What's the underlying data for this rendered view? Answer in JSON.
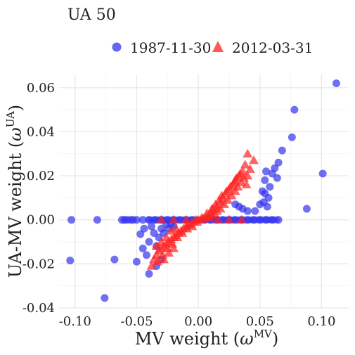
{
  "chart_data": {
    "type": "scatter",
    "title": "UA 50",
    "xlabel": {
      "main": "MV weight (",
      "omega": "ω",
      "sup": "MV",
      "close": ")"
    },
    "ylabel": {
      "main": "UA-MV weight (",
      "omega": "ω",
      "sup": "UA",
      "close": ")"
    },
    "xlim": [
      -0.113,
      0.122
    ],
    "ylim": [
      -0.04,
      0.066
    ],
    "x_ticks": [
      {
        "value": -0.1,
        "label": "-0.10"
      },
      {
        "value": -0.05,
        "label": "-0.05"
      },
      {
        "value": 0.0,
        "label": "0.00"
      },
      {
        "value": 0.05,
        "label": "0.05"
      },
      {
        "value": 0.1,
        "label": "0.10"
      }
    ],
    "y_ticks": [
      {
        "value": -0.04,
        "label": "-0.04"
      },
      {
        "value": -0.02,
        "label": "-0.02"
      },
      {
        "value": 0.0,
        "label": "0.00"
      },
      {
        "value": 0.02,
        "label": "0.02"
      },
      {
        "value": 0.04,
        "label": "0.04"
      },
      {
        "value": 0.06,
        "label": "0.06"
      }
    ],
    "grid": true,
    "legend_position": "top",
    "series": [
      {
        "name": "1987-11-30",
        "marker": "circle",
        "color": "#3333ee",
        "points": [
          [
            0.112,
            0.062
          ],
          [
            0.078,
            0.05
          ],
          [
            0.076,
            0.0375
          ],
          [
            0.068,
            0.0315
          ],
          [
            0.101,
            0.021
          ],
          [
            0.088,
            0.005
          ],
          [
            0.065,
            0.026
          ],
          [
            0.064,
            0.019
          ],
          [
            0.062,
            0.0235
          ],
          [
            0.06,
            0.021
          ],
          [
            0.055,
            0.022
          ],
          [
            0.058,
            0.015
          ],
          [
            0.054,
            0.018
          ],
          [
            0.052,
            0.013
          ],
          [
            0.057,
            0.01
          ],
          [
            0.053,
            0.008
          ],
          [
            0.056,
            0.006
          ],
          [
            0.05,
            0.007
          ],
          [
            0.054,
            0.012
          ],
          [
            0.046,
            0.004
          ],
          [
            0.04,
            0.004
          ],
          [
            0.033,
            0.006
          ],
          [
            0.03,
            0.007
          ],
          [
            0.036,
            0.005
          ],
          [
            -0.103,
            0.0
          ],
          [
            -0.082,
            0.0
          ],
          [
            -0.062,
            0.0
          ],
          [
            -0.06,
            0.0
          ],
          [
            -0.058,
            0.0
          ],
          [
            -0.055,
            0.0
          ],
          [
            -0.053,
            0.0
          ],
          [
            -0.05,
            0.0
          ],
          [
            -0.045,
            0.0
          ],
          [
            -0.04,
            0.0
          ],
          [
            -0.035,
            0.0
          ],
          [
            -0.03,
            0.0
          ],
          [
            -0.025,
            0.0
          ],
          [
            -0.02,
            0.0
          ],
          [
            -0.015,
            0.0
          ],
          [
            -0.01,
            0.0
          ],
          [
            -0.005,
            0.0
          ],
          [
            0.005,
            0.0
          ],
          [
            0.01,
            0.0
          ],
          [
            0.015,
            0.0
          ],
          [
            0.02,
            0.0
          ],
          [
            0.025,
            0.0
          ],
          [
            0.03,
            0.0
          ],
          [
            0.035,
            0.0
          ],
          [
            0.04,
            0.0
          ],
          [
            0.045,
            0.0
          ],
          [
            0.05,
            0.0
          ],
          [
            0.055,
            0.0
          ],
          [
            0.06,
            0.0
          ],
          [
            0.065,
            0.0
          ],
          [
            -0.104,
            -0.0185
          ],
          [
            -0.068,
            -0.018
          ],
          [
            -0.076,
            -0.0355
          ],
          [
            -0.05,
            -0.019
          ],
          [
            -0.04,
            -0.0245
          ],
          [
            -0.042,
            -0.016
          ],
          [
            -0.045,
            -0.013
          ],
          [
            -0.047,
            -0.0065
          ],
          [
            -0.044,
            -0.004
          ],
          [
            -0.04,
            -0.01
          ],
          [
            -0.038,
            -0.003
          ],
          [
            -0.036,
            -0.006
          ],
          [
            -0.034,
            -0.012
          ],
          [
            -0.032,
            -0.008
          ],
          [
            -0.03,
            -0.004
          ],
          [
            -0.028,
            -0.006
          ],
          [
            -0.026,
            -0.002
          ],
          [
            -0.024,
            -0.004
          ],
          [
            -0.022,
            -0.002
          ],
          [
            -0.02,
            -0.003
          ],
          [
            -0.034,
            -0.021
          ],
          [
            -0.03,
            -0.018
          ]
        ]
      },
      {
        "name": "2012-03-31",
        "marker": "triangle",
        "color": "#ff2222",
        "points": [
          [
            0.04,
            0.03
          ],
          [
            0.045,
            0.027
          ],
          [
            0.038,
            0.025
          ],
          [
            0.042,
            0.023
          ],
          [
            0.036,
            0.022
          ],
          [
            0.033,
            0.02
          ],
          [
            0.04,
            0.02
          ],
          [
            0.03,
            0.018
          ],
          [
            0.035,
            0.017
          ],
          [
            0.028,
            0.016
          ],
          [
            0.032,
            0.015
          ],
          [
            0.025,
            0.014
          ],
          [
            0.03,
            0.013
          ],
          [
            0.022,
            0.012
          ],
          [
            0.027,
            0.011
          ],
          [
            0.02,
            0.01
          ],
          [
            0.024,
            0.009
          ],
          [
            0.018,
            0.008
          ],
          [
            0.021,
            0.007
          ],
          [
            0.015,
            0.006
          ],
          [
            0.018,
            0.005
          ],
          [
            0.012,
            0.005
          ],
          [
            0.015,
            0.004
          ],
          [
            0.01,
            0.003
          ],
          [
            0.013,
            0.003
          ],
          [
            0.008,
            0.002
          ],
          [
            0.011,
            0.002
          ],
          [
            0.006,
            0.001
          ],
          [
            0.009,
            0.001
          ],
          [
            0.004,
            0.0005
          ],
          [
            0.002,
            0.0
          ],
          [
            0.0,
            0.0
          ],
          [
            -0.002,
            0.0
          ],
          [
            0.016,
            0.0
          ],
          [
            0.025,
            0.0
          ],
          [
            0.035,
            0.0
          ],
          [
            -0.01,
            0.0
          ],
          [
            -0.02,
            0.0
          ],
          [
            -0.03,
            0.0
          ],
          [
            -0.004,
            -0.001
          ],
          [
            -0.006,
            -0.002
          ],
          [
            -0.008,
            -0.002
          ],
          [
            -0.01,
            -0.003
          ],
          [
            -0.012,
            -0.004
          ],
          [
            -0.014,
            -0.005
          ],
          [
            -0.016,
            -0.006
          ],
          [
            -0.018,
            -0.007
          ],
          [
            -0.02,
            -0.008
          ],
          [
            -0.022,
            -0.009
          ],
          [
            -0.024,
            -0.01
          ],
          [
            -0.026,
            -0.011
          ],
          [
            -0.028,
            -0.012
          ],
          [
            -0.03,
            -0.013
          ],
          [
            -0.032,
            -0.014
          ],
          [
            -0.034,
            -0.016
          ],
          [
            -0.036,
            -0.018
          ],
          [
            -0.038,
            -0.021
          ],
          [
            -0.033,
            -0.019
          ],
          [
            -0.029,
            -0.016
          ],
          [
            -0.025,
            -0.013
          ],
          [
            -0.021,
            -0.011
          ],
          [
            -0.017,
            -0.008
          ],
          [
            -0.013,
            -0.006
          ],
          [
            -0.009,
            -0.004
          ],
          [
            -0.005,
            -0.003
          ],
          [
            -0.001,
            -0.001
          ],
          [
            0.003,
            0.001
          ],
          [
            0.007,
            0.003
          ],
          [
            0.011,
            0.005
          ],
          [
            0.014,
            0.007
          ],
          [
            0.017,
            0.009
          ],
          [
            0.019,
            0.011
          ],
          [
            0.023,
            0.013
          ],
          [
            0.026,
            0.015
          ],
          [
            0.029,
            0.017
          ],
          [
            0.031,
            0.019
          ],
          [
            0.034,
            0.021
          ],
          [
            0.037,
            0.019
          ],
          [
            0.039,
            0.016
          ],
          [
            -0.026,
            -0.008
          ],
          [
            -0.03,
            -0.01
          ],
          [
            -0.034,
            -0.012
          ],
          [
            -0.022,
            -0.005
          ],
          [
            -0.018,
            -0.004
          ],
          [
            -0.024,
            -0.015
          ],
          [
            -0.028,
            -0.018
          ],
          [
            -0.02,
            -0.013
          ]
        ]
      }
    ]
  }
}
